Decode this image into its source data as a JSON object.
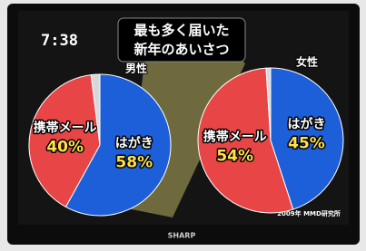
{
  "header": {
    "time": "7:38",
    "title_lines": [
      "最も多く届いた",
      "新年のあいさつ"
    ],
    "source": "2009年 MMD研究所",
    "brand": "SHARP"
  },
  "chart_data": [
    {
      "type": "pie",
      "title": "男性",
      "categories": [
        "はがき",
        "携帯メール",
        null
      ],
      "values": [
        58,
        40,
        2
      ],
      "value_labels": [
        "58%",
        "40%",
        null
      ],
      "colors": [
        "#1d5fd8",
        "#e84646",
        "#d8d8d8"
      ]
    },
    {
      "type": "pie",
      "title": "女性",
      "categories": [
        "はがき",
        "携帯メール",
        null
      ],
      "values": [
        45,
        54,
        1
      ],
      "value_labels": [
        "45%",
        "54%",
        null
      ],
      "colors": [
        "#1d5fd8",
        "#e84646",
        "#d8d8d8"
      ]
    }
  ]
}
